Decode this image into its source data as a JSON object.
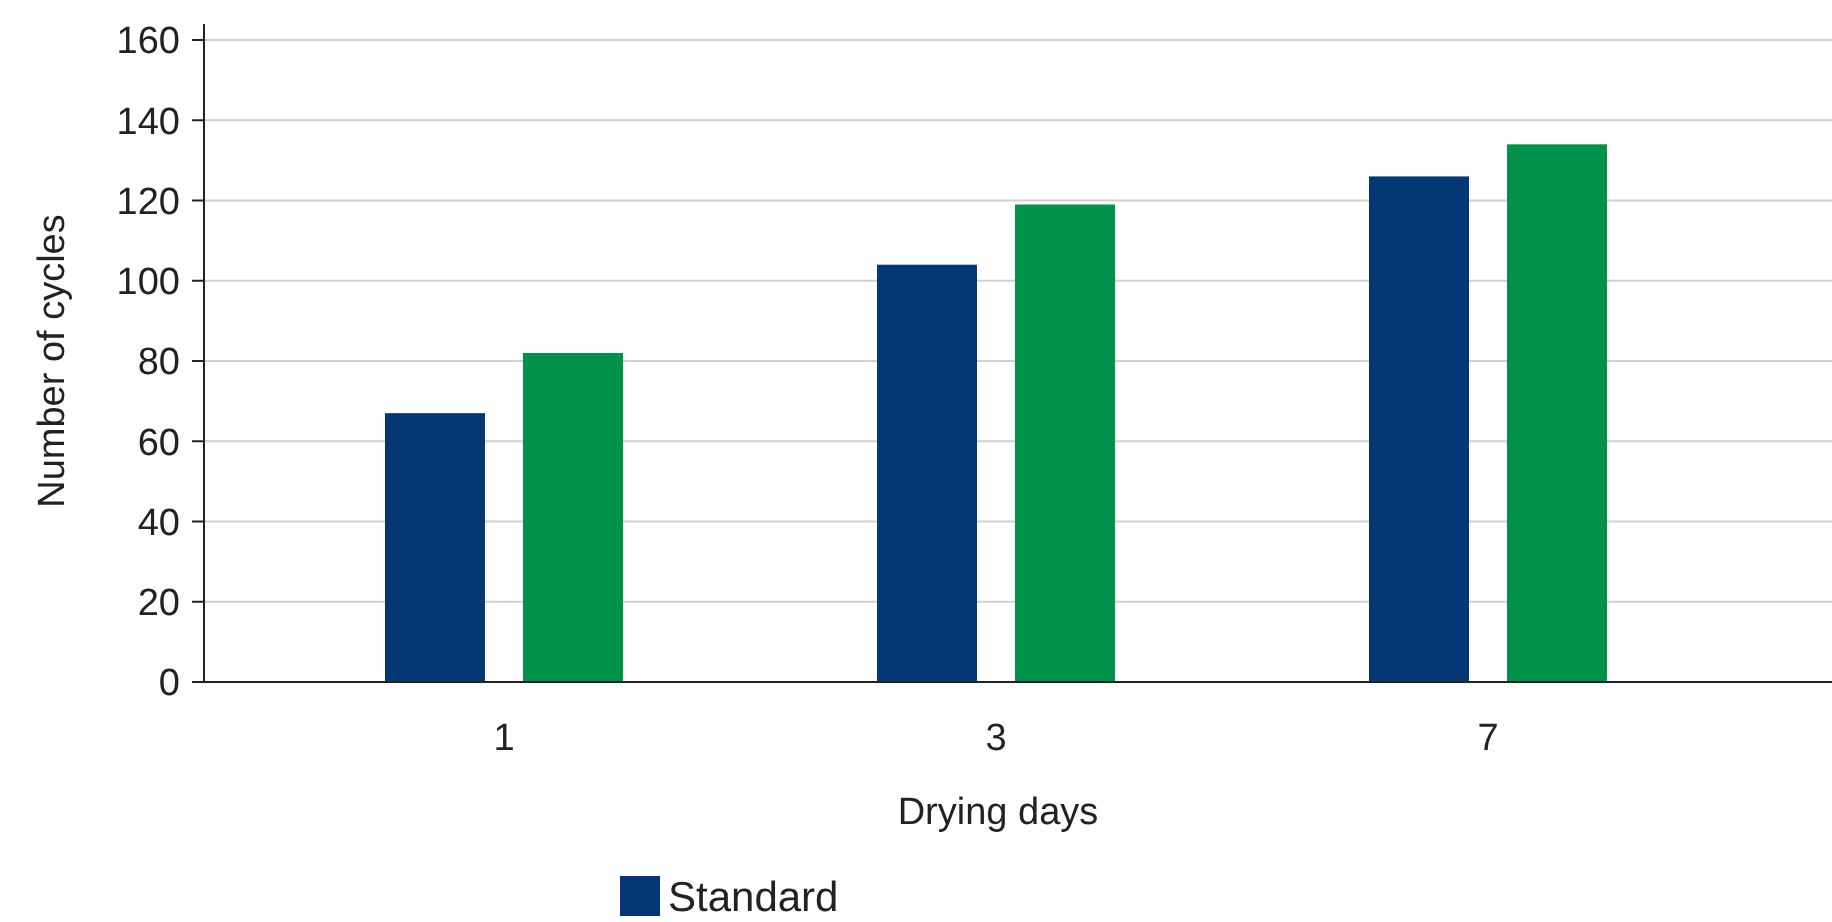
{
  "chart_data": {
    "type": "bar",
    "xlabel": "Drying days",
    "ylabel": "Number of cycles",
    "categories": [
      "1",
      "3",
      "7"
    ],
    "series": [
      {
        "name": "Standard",
        "color": "#033875",
        "values": [
          67,
          104,
          126
        ]
      },
      {
        "color": "#00924a",
        "values": [
          82,
          119,
          134
        ]
      }
    ],
    "ylim": [
      0,
      160
    ],
    "yticks": [
      0,
      20,
      40,
      60,
      80,
      100,
      120,
      140,
      160
    ],
    "grid": "y",
    "legend": "bottom"
  }
}
